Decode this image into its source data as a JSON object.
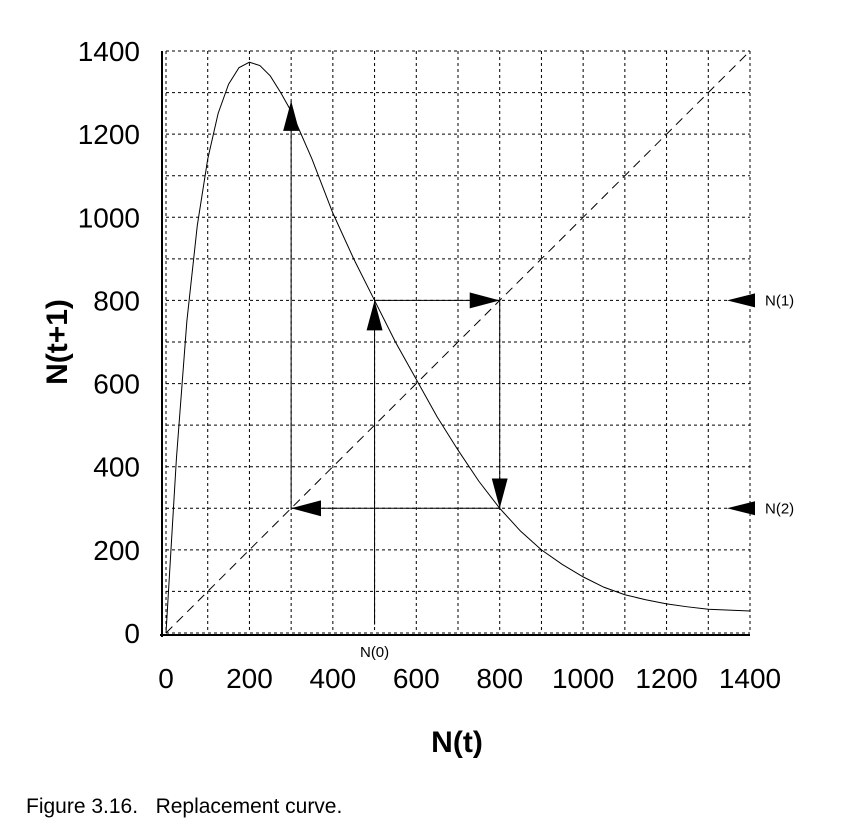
{
  "caption": "Figure 3.16.   Replacement curve.",
  "chart_data": {
    "type": "line",
    "xlabel": "N(t)",
    "ylabel": "N(t+1)",
    "xlim": [
      0,
      1400
    ],
    "ylim": [
      0,
      1400
    ],
    "xticks": [
      0,
      200,
      400,
      600,
      800,
      1000,
      1200,
      1400
    ],
    "yticks": [
      0,
      200,
      400,
      600,
      800,
      1000,
      1200,
      1400
    ],
    "grid": true,
    "grid_style": "dashed",
    "grid_step": 100,
    "series": [
      {
        "style": "solid",
        "x": [
          0,
          25,
          50,
          75,
          100,
          125,
          150,
          175,
          200,
          225,
          250,
          275,
          300,
          350,
          400,
          450,
          500,
          550,
          600,
          650,
          700,
          750,
          800,
          850,
          900,
          950,
          1000,
          1050,
          1100,
          1150,
          1200,
          1250,
          1300,
          1350,
          1400
        ],
        "y": [
          0,
          420,
          750,
          980,
          1140,
          1250,
          1320,
          1360,
          1373,
          1365,
          1340,
          1300,
          1255,
          1140,
          1010,
          900,
          800,
          700,
          610,
          520,
          440,
          365,
          300,
          245,
          200,
          165,
          135,
          110,
          92,
          80,
          70,
          63,
          57,
          55,
          53
        ]
      },
      {
        "style": "dashed",
        "x": [
          0,
          1400
        ],
        "y": [
          0,
          1400
        ]
      }
    ],
    "cobweb_arrows": [
      {
        "from": [
          500,
          20
        ],
        "to": [
          500,
          800
        ]
      },
      {
        "from": [
          500,
          800
        ],
        "to": [
          800,
          800
        ]
      },
      {
        "from": [
          800,
          800
        ],
        "to": [
          800,
          300
        ]
      },
      {
        "from": [
          800,
          300
        ],
        "to": [
          300,
          300
        ]
      },
      {
        "from": [
          300,
          300
        ],
        "to": [
          300,
          1280
        ]
      }
    ],
    "annotations": [
      {
        "text": "N(0)",
        "x": 500,
        "y": -50
      },
      {
        "text": "N(1)",
        "x": 1400,
        "y": 800
      },
      {
        "text": "N(2)",
        "x": 1400,
        "y": 300
      }
    ]
  }
}
